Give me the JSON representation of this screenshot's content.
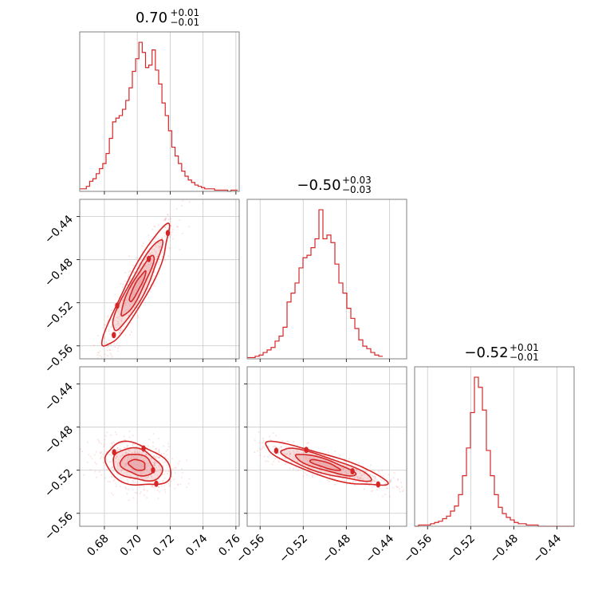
{
  "colors": {
    "series": "#d62728",
    "fill": "#e9a5a7",
    "fill_dark": "#d95f62",
    "frame": "#808080",
    "grid": "#c8c8c8"
  },
  "chart_data": {
    "type": "corner",
    "grid": true,
    "parameters": [
      {
        "range": [
          0.665,
          0.762
        ],
        "ticks": [
          0.68,
          0.7,
          0.72,
          0.74,
          0.76
        ],
        "tick_labels": [
          "0.68",
          "0.70",
          "0.72",
          "0.74",
          "0.76"
        ]
      },
      {
        "range": [
          -0.572,
          -0.424
        ],
        "ticks": [
          -0.56,
          -0.52,
          -0.48,
          -0.44
        ],
        "tick_labels": [
          "−0.56",
          "−0.52",
          "−0.48",
          "−0.44"
        ]
      },
      {
        "range": [
          -0.572,
          -0.424
        ],
        "ticks": [
          -0.56,
          -0.52,
          -0.48,
          -0.44
        ],
        "tick_labels": [
          "−0.56",
          "−0.52",
          "−0.48",
          "−0.44"
        ]
      }
    ],
    "titles": [
      {
        "median": "0.70",
        "upper": "+0.01",
        "lower": "−0.01"
      },
      {
        "median": "−0.50",
        "upper": "+0.03",
        "lower": "−0.03"
      },
      {
        "median": "−0.52",
        "upper": "+0.01",
        "lower": "−0.01"
      }
    ],
    "histograms": [
      {
        "param": 0,
        "bin_start": 0.665,
        "bin_width": 0.002,
        "counts": [
          2,
          2,
          4,
          8,
          10,
          14,
          18,
          22,
          30,
          42,
          55,
          58,
          60,
          65,
          72,
          82,
          95,
          105,
          118,
          110,
          98,
          100,
          112,
          96,
          85,
          70,
          60,
          48,
          35,
          28,
          22,
          16,
          12,
          9,
          7,
          5,
          4,
          3,
          2,
          2,
          2,
          1,
          1,
          1,
          1,
          0,
          1,
          1
        ]
      },
      {
        "param": 1,
        "bin_start": -0.572,
        "bin_width": 0.0037,
        "counts": [
          1,
          1,
          2,
          3,
          5,
          7,
          9,
          14,
          18,
          25,
          45,
          52,
          60,
          72,
          80,
          82,
          88,
          95,
          118,
          95,
          98,
          92,
          75,
          60,
          52,
          40,
          32,
          24,
          15,
          10,
          8,
          5,
          3,
          2
        ]
      },
      {
        "param": 2,
        "bin_start": -0.572,
        "bin_width": 0.0037,
        "counts": [
          0,
          1,
          1,
          1,
          2,
          3,
          4,
          6,
          8,
          12,
          16,
          25,
          40,
          62,
          90,
          118,
          110,
          92,
          60,
          40,
          25,
          15,
          10,
          7,
          5,
          3,
          2,
          2,
          1,
          1,
          1,
          0,
          0,
          0,
          0,
          0,
          0,
          0,
          0,
          0
        ]
      }
    ],
    "joints": [
      {
        "x_param": 0,
        "y_param": 1,
        "mean": [
          0.7,
          -0.505
        ],
        "std": [
          0.01,
          0.028
        ],
        "rho": 0.92
      },
      {
        "x_param": 0,
        "y_param": 2,
        "mean": [
          0.7,
          -0.515
        ],
        "std": [
          0.01,
          0.01
        ],
        "rho": -0.3
      },
      {
        "x_param": 1,
        "y_param": 2,
        "mean": [
          -0.5,
          -0.515
        ],
        "std": [
          0.028,
          0.01
        ],
        "rho": -0.85
      }
    ],
    "contour_levels_sigma": [
      0.5,
      1.0,
      1.5,
      2.0
    ]
  }
}
